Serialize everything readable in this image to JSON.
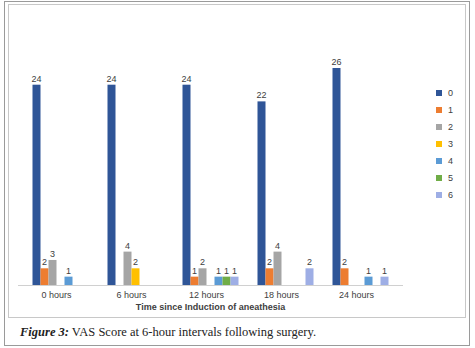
{
  "chart_data": {
    "type": "bar",
    "title": "Figure 3: VAS Score at 6-hour intervals following surgery.",
    "x_label": "Time since Induction of aneathesia",
    "categories": [
      "0 hours",
      "6 hours",
      "12 hours",
      "18 hours",
      "24 hours"
    ],
    "series": [
      {
        "name": "0",
        "color": "#2f5597",
        "values": [
          24,
          24,
          24,
          22,
          26
        ]
      },
      {
        "name": "1",
        "color": "#ed7d31",
        "values": [
          2,
          null,
          1,
          2,
          2
        ]
      },
      {
        "name": "2",
        "color": "#a5a5a5",
        "values": [
          3,
          4,
          2,
          4,
          null
        ]
      },
      {
        "name": "3",
        "color": "#ffc000",
        "values": [
          null,
          2,
          null,
          null,
          null
        ]
      },
      {
        "name": "4",
        "color": "#5b9bd5",
        "values": [
          1,
          null,
          1,
          null,
          1
        ]
      },
      {
        "name": "5",
        "color": "#70ad47",
        "values": [
          null,
          null,
          1,
          null,
          null
        ]
      },
      {
        "name": "6",
        "color": "#9eaee5",
        "values": [
          null,
          null,
          1,
          2,
          1
        ]
      }
    ],
    "ylim": [
      0,
      26
    ],
    "data_labels": true,
    "tick_labels": "x",
    "legend": "right",
    "grid": false
  }
}
